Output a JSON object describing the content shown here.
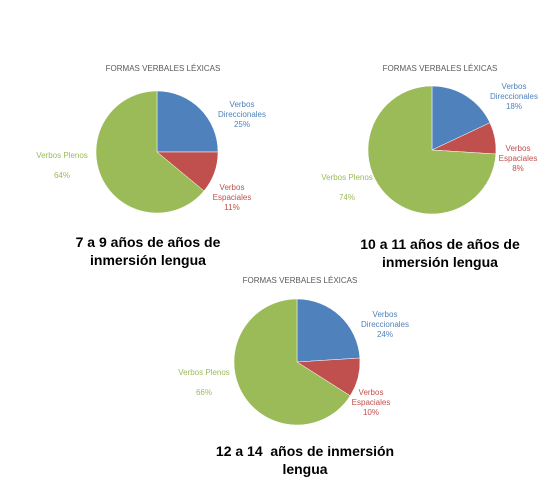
{
  "chart_data": [
    {
      "type": "pie",
      "title": "FORMAS VERBALES LÉXICAS",
      "caption": "7 a 9 años de años de inmersión lengua",
      "categories": [
        "Verbos Direccionales",
        "Verbos Espaciales",
        "Verbos Plenos"
      ],
      "values": [
        25,
        11,
        64
      ],
      "value_labels": [
        "25%",
        "11%",
        "64%"
      ],
      "colors": [
        "#4f81bd",
        "#c0504d",
        "#9bbb59"
      ]
    },
    {
      "type": "pie",
      "title": "FORMAS VERBALES LÉXICAS",
      "caption": "10 a 11 años de años de inmersión lengua",
      "categories": [
        "Verbos Direccionales",
        "Verbos Espaciales",
        "Verbos Plenos"
      ],
      "values": [
        18,
        8,
        74
      ],
      "value_labels": [
        "18%",
        "8%",
        "74%"
      ],
      "colors": [
        "#4f81bd",
        "#c0504d",
        "#9bbb59"
      ]
    },
    {
      "type": "pie",
      "title": "FORMAS VERBALES LÉXICAS",
      "caption": "12 a 14  años de inmersión lengua",
      "categories": [
        "Verbos Direccionales",
        "Verbos Espaciales",
        "Verbos Plenos"
      ],
      "values": [
        24,
        10,
        66
      ],
      "value_labels": [
        "24%",
        "10%",
        "66%"
      ],
      "colors": [
        "#4f81bd",
        "#c0504d",
        "#9bbb59"
      ]
    }
  ]
}
